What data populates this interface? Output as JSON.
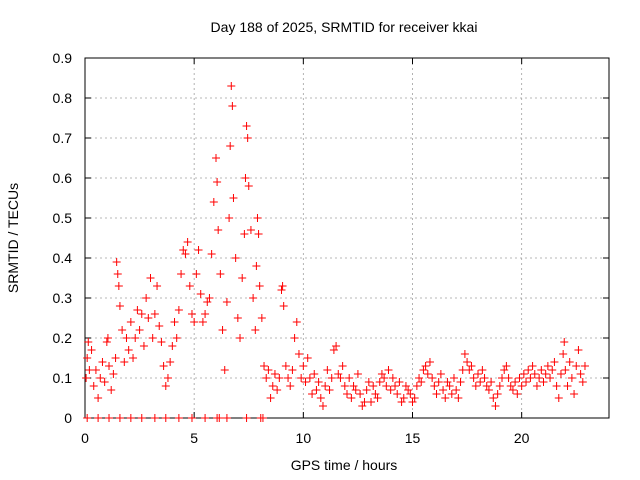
{
  "chart_data": {
    "type": "scatter",
    "title": "Day 188 of 2025, SRMTID for receiver kkai",
    "xlabel": "GPS time / hours",
    "ylabel": "SRMTID / TECUs",
    "xlim": [
      0,
      24
    ],
    "ylim": [
      0,
      0.9
    ],
    "xticks": [
      0,
      5,
      10,
      15,
      20
    ],
    "yticks": [
      0,
      0.1,
      0.2,
      0.3,
      0.4,
      0.5,
      0.6,
      0.7,
      0.8,
      0.9
    ],
    "xtick_labels": [
      "0",
      "5",
      "10",
      "15",
      "20"
    ],
    "ytick_labels": [
      "0",
      "0.1",
      "0.2",
      "0.3",
      "0.4",
      "0.5",
      "0.6",
      "0.7",
      "0.8",
      "0.9"
    ],
    "grid": true,
    "marker": "+",
    "color": "#ff0000",
    "series": [
      {
        "name": "SRMTID",
        "points": [
          [
            0.05,
            0.1
          ],
          [
            0.1,
            0.15
          ],
          [
            0.15,
            0.19
          ],
          [
            0.2,
            0.12
          ],
          [
            0.3,
            0.17
          ],
          [
            0.4,
            0.08
          ],
          [
            0.5,
            0.12
          ],
          [
            0.6,
            0.05
          ],
          [
            0.7,
            0.1
          ],
          [
            0.8,
            0.14
          ],
          [
            0.9,
            0.09
          ],
          [
            1.0,
            0.19
          ],
          [
            1.05,
            0.2
          ],
          [
            1.1,
            0.13
          ],
          [
            1.2,
            0.07
          ],
          [
            1.3,
            0.11
          ],
          [
            1.4,
            0.15
          ],
          [
            1.45,
            0.39
          ],
          [
            1.5,
            0.36
          ],
          [
            1.55,
            0.33
          ],
          [
            1.6,
            0.28
          ],
          [
            1.7,
            0.22
          ],
          [
            1.8,
            0.14
          ],
          [
            1.9,
            0.2
          ],
          [
            2.0,
            0.17
          ],
          [
            2.1,
            0.24
          ],
          [
            2.2,
            0.15
          ],
          [
            2.3,
            0.2
          ],
          [
            2.4,
            0.27
          ],
          [
            2.5,
            0.22
          ],
          [
            2.6,
            0.26
          ],
          [
            2.7,
            0.18
          ],
          [
            2.8,
            0.3
          ],
          [
            2.9,
            0.25
          ],
          [
            3.0,
            0.35
          ],
          [
            3.1,
            0.2
          ],
          [
            3.2,
            0.26
          ],
          [
            3.3,
            0.33
          ],
          [
            3.4,
            0.23
          ],
          [
            3.5,
            0.19
          ],
          [
            3.6,
            0.13
          ],
          [
            3.7,
            0.08
          ],
          [
            3.8,
            0.1
          ],
          [
            3.9,
            0.14
          ],
          [
            4.0,
            0.18
          ],
          [
            4.1,
            0.24
          ],
          [
            4.2,
            0.2
          ],
          [
            4.3,
            0.27
          ],
          [
            4.4,
            0.36
          ],
          [
            4.5,
            0.42
          ],
          [
            4.6,
            0.41
          ],
          [
            4.7,
            0.44
          ],
          [
            4.8,
            0.33
          ],
          [
            4.9,
            0.26
          ],
          [
            5.0,
            0.24
          ],
          [
            5.1,
            0.36
          ],
          [
            5.2,
            0.42
          ],
          [
            5.3,
            0.31
          ],
          [
            5.4,
            0.24
          ],
          [
            5.5,
            0.26
          ],
          [
            5.6,
            0.29
          ],
          [
            5.7,
            0.3
          ],
          [
            5.8,
            0.41
          ],
          [
            5.9,
            0.54
          ],
          [
            6.0,
            0.65
          ],
          [
            6.05,
            0.59
          ],
          [
            6.1,
            0.47
          ],
          [
            6.2,
            0.36
          ],
          [
            6.3,
            0.22
          ],
          [
            6.4,
            0.12
          ],
          [
            6.5,
            0.29
          ],
          [
            6.6,
            0.5
          ],
          [
            6.65,
            0.68
          ],
          [
            6.7,
            0.83
          ],
          [
            6.75,
            0.78
          ],
          [
            6.8,
            0.55
          ],
          [
            6.9,
            0.4
          ],
          [
            7.0,
            0.25
          ],
          [
            7.1,
            0.2
          ],
          [
            7.2,
            0.35
          ],
          [
            7.3,
            0.46
          ],
          [
            7.35,
            0.6
          ],
          [
            7.4,
            0.73
          ],
          [
            7.45,
            0.7
          ],
          [
            7.5,
            0.58
          ],
          [
            7.6,
            0.47
          ],
          [
            7.7,
            0.3
          ],
          [
            7.8,
            0.22
          ],
          [
            7.85,
            0.38
          ],
          [
            7.9,
            0.5
          ],
          [
            7.95,
            0.46
          ],
          [
            8.0,
            0.33
          ],
          [
            8.1,
            0.25
          ],
          [
            8.2,
            0.13
          ],
          [
            8.3,
            0.1
          ],
          [
            8.4,
            0.12
          ],
          [
            8.5,
            0.05
          ],
          [
            8.6,
            0.08
          ],
          [
            8.7,
            0.11
          ],
          [
            8.8,
            0.07
          ],
          [
            8.9,
            0.1
          ],
          [
            9.0,
            0.32
          ],
          [
            9.05,
            0.33
          ],
          [
            9.1,
            0.28
          ],
          [
            9.2,
            0.13
          ],
          [
            9.3,
            0.1
          ],
          [
            9.4,
            0.08
          ],
          [
            9.5,
            0.12
          ],
          [
            9.6,
            0.2
          ],
          [
            9.7,
            0.24
          ],
          [
            9.8,
            0.16
          ],
          [
            9.9,
            0.1
          ],
          [
            10.0,
            0.13
          ],
          [
            10.1,
            0.09
          ],
          [
            10.2,
            0.15
          ],
          [
            10.3,
            0.1
          ],
          [
            10.4,
            0.06
          ],
          [
            10.5,
            0.11
          ],
          [
            10.6,
            0.07
          ],
          [
            10.7,
            0.09
          ],
          [
            10.8,
            0.05
          ],
          [
            10.9,
            0.03
          ],
          [
            11.0,
            0.08
          ],
          [
            11.1,
            0.12
          ],
          [
            11.2,
            0.07
          ],
          [
            11.3,
            0.1
          ],
          [
            11.4,
            0.17
          ],
          [
            11.5,
            0.18
          ],
          [
            11.6,
            0.11
          ],
          [
            11.7,
            0.1
          ],
          [
            11.8,
            0.13
          ],
          [
            11.9,
            0.08
          ],
          [
            12.0,
            0.06
          ],
          [
            12.1,
            0.1
          ],
          [
            12.2,
            0.05
          ],
          [
            12.3,
            0.08
          ],
          [
            12.4,
            0.07
          ],
          [
            12.5,
            0.11
          ],
          [
            12.6,
            0.06
          ],
          [
            12.7,
            0.03
          ],
          [
            12.8,
            0.04
          ],
          [
            12.9,
            0.07
          ],
          [
            13.0,
            0.09
          ],
          [
            13.1,
            0.04
          ],
          [
            13.2,
            0.08
          ],
          [
            13.3,
            0.06
          ],
          [
            13.4,
            0.05
          ],
          [
            13.5,
            0.09
          ],
          [
            13.6,
            0.11
          ],
          [
            13.7,
            0.1
          ],
          [
            13.8,
            0.08
          ],
          [
            13.9,
            0.12
          ],
          [
            14.0,
            0.07
          ],
          [
            14.1,
            0.1
          ],
          [
            14.2,
            0.08
          ],
          [
            14.3,
            0.06
          ],
          [
            14.4,
            0.09
          ],
          [
            14.5,
            0.04
          ],
          [
            14.6,
            0.05
          ],
          [
            14.7,
            0.08
          ],
          [
            14.8,
            0.07
          ],
          [
            14.9,
            0.06
          ],
          [
            15.0,
            0.04
          ],
          [
            15.1,
            0.05
          ],
          [
            15.2,
            0.08
          ],
          [
            15.3,
            0.1
          ],
          [
            15.4,
            0.09
          ],
          [
            15.5,
            0.12
          ],
          [
            15.6,
            0.13
          ],
          [
            15.7,
            0.11
          ],
          [
            15.8,
            0.14
          ],
          [
            15.9,
            0.1
          ],
          [
            16.0,
            0.08
          ],
          [
            16.1,
            0.06
          ],
          [
            16.2,
            0.09
          ],
          [
            16.3,
            0.11
          ],
          [
            16.4,
            0.07
          ],
          [
            16.5,
            0.05
          ],
          [
            16.6,
            0.09
          ],
          [
            16.7,
            0.08
          ],
          [
            16.8,
            0.06
          ],
          [
            16.9,
            0.1
          ],
          [
            17.0,
            0.07
          ],
          [
            17.1,
            0.05
          ],
          [
            17.2,
            0.09
          ],
          [
            17.3,
            0.12
          ],
          [
            17.4,
            0.16
          ],
          [
            17.5,
            0.14
          ],
          [
            17.6,
            0.12
          ],
          [
            17.7,
            0.13
          ],
          [
            17.8,
            0.1
          ],
          [
            17.9,
            0.08
          ],
          [
            18.0,
            0.11
          ],
          [
            18.1,
            0.09
          ],
          [
            18.2,
            0.12
          ],
          [
            18.3,
            0.1
          ],
          [
            18.4,
            0.08
          ],
          [
            18.5,
            0.07
          ],
          [
            18.6,
            0.09
          ],
          [
            18.7,
            0.05
          ],
          [
            18.8,
            0.03
          ],
          [
            18.9,
            0.06
          ],
          [
            19.0,
            0.08
          ],
          [
            19.1,
            0.1
          ],
          [
            19.2,
            0.12
          ],
          [
            19.3,
            0.13
          ],
          [
            19.4,
            0.1
          ],
          [
            19.5,
            0.08
          ],
          [
            19.6,
            0.07
          ],
          [
            19.7,
            0.09
          ],
          [
            19.8,
            0.06
          ],
          [
            19.9,
            0.1
          ],
          [
            20.0,
            0.08
          ],
          [
            20.1,
            0.11
          ],
          [
            20.2,
            0.09
          ],
          [
            20.3,
            0.12
          ],
          [
            20.4,
            0.1
          ],
          [
            20.5,
            0.13
          ],
          [
            20.6,
            0.11
          ],
          [
            20.7,
            0.08
          ],
          [
            20.8,
            0.1
          ],
          [
            20.9,
            0.12
          ],
          [
            21.0,
            0.09
          ],
          [
            21.1,
            0.11
          ],
          [
            21.2,
            0.13
          ],
          [
            21.3,
            0.1
          ],
          [
            21.4,
            0.12
          ],
          [
            21.5,
            0.14
          ],
          [
            21.6,
            0.08
          ],
          [
            21.7,
            0.05
          ],
          [
            21.8,
            0.11
          ],
          [
            21.9,
            0.16
          ],
          [
            21.95,
            0.19
          ],
          [
            22.0,
            0.12
          ],
          [
            22.1,
            0.08
          ],
          [
            22.2,
            0.14
          ],
          [
            22.3,
            0.1
          ],
          [
            22.4,
            0.06
          ],
          [
            22.5,
            0.13
          ],
          [
            22.6,
            0.17
          ],
          [
            22.7,
            0.11
          ],
          [
            22.8,
            0.09
          ],
          [
            22.9,
            0.13
          ]
        ]
      }
    ],
    "zero_points_x": [
      0.1,
      0.6,
      1.1,
      1.6,
      2.1,
      2.6,
      3.2,
      3.7,
      4.3,
      4.9,
      5.5,
      6.05,
      6.15,
      6.5,
      7.4,
      8.05,
      8.15
    ]
  }
}
